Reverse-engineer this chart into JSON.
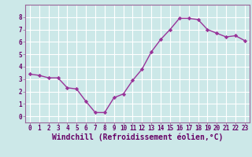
{
  "x": [
    0,
    1,
    2,
    3,
    4,
    5,
    6,
    7,
    8,
    9,
    10,
    11,
    12,
    13,
    14,
    15,
    16,
    17,
    18,
    19,
    20,
    21,
    22,
    23
  ],
  "y": [
    3.4,
    3.3,
    3.1,
    3.1,
    2.3,
    2.2,
    1.2,
    0.3,
    0.3,
    1.5,
    1.8,
    2.9,
    3.8,
    5.2,
    6.2,
    7.0,
    7.9,
    7.9,
    7.8,
    7.0,
    6.7,
    6.4,
    6.5,
    6.1
  ],
  "line_color": "#993399",
  "marker": "D",
  "marker_size": 2.2,
  "bg_color": "#cce8e8",
  "grid_color": "#ffffff",
  "xlabel": "Windchill (Refroidissement éolien,°C)",
  "xlim": [
    -0.5,
    23.5
  ],
  "ylim": [
    -0.5,
    9.0
  ],
  "yticks": [
    0,
    1,
    2,
    3,
    4,
    5,
    6,
    7,
    8
  ],
  "xticks": [
    0,
    1,
    2,
    3,
    4,
    5,
    6,
    7,
    8,
    9,
    10,
    11,
    12,
    13,
    14,
    15,
    16,
    17,
    18,
    19,
    20,
    21,
    22,
    23
  ],
  "tick_fontsize": 5.5,
  "xlabel_fontsize": 7,
  "label_color": "#660066",
  "axis_bg": "#cce8e8",
  "spine_color": "#996699",
  "linewidth": 1.0
}
